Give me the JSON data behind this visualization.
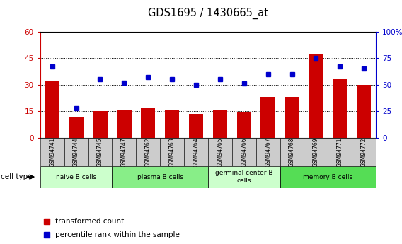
{
  "title": "GDS1695 / 1430665_at",
  "samples": [
    "GSM94741",
    "GSM94744",
    "GSM94745",
    "GSM94747",
    "GSM94762",
    "GSM94763",
    "GSM94764",
    "GSM94765",
    "GSM94766",
    "GSM94767",
    "GSM94768",
    "GSM94769",
    "GSM94771",
    "GSM94772"
  ],
  "bar_values": [
    32,
    12,
    15,
    16,
    17,
    15.5,
    13.5,
    15.5,
    14.5,
    23,
    23,
    47,
    33,
    30
  ],
  "dot_values": [
    67,
    28,
    55,
    52,
    57,
    55,
    50,
    55,
    51,
    60,
    60,
    75,
    67,
    65
  ],
  "ylim_left": [
    0,
    60
  ],
  "ylim_right": [
    0,
    100
  ],
  "yticks_left": [
    0,
    15,
    30,
    45,
    60
  ],
  "yticks_right": [
    0,
    25,
    50,
    75,
    100
  ],
  "ytick_labels_right": [
    "0",
    "25",
    "50",
    "75",
    "100%"
  ],
  "bar_color": "#cc0000",
  "dot_color": "#0000cc",
  "left_tick_color": "#cc0000",
  "right_tick_color": "#0000cc",
  "cell_groups": [
    {
      "label": "naive B cells",
      "start": 0,
      "end": 3,
      "color": "#ccffcc"
    },
    {
      "label": "plasma B cells",
      "start": 3,
      "end": 7,
      "color": "#88ee88"
    },
    {
      "label": "germinal center B\ncells",
      "start": 7,
      "end": 10,
      "color": "#ccffcc"
    },
    {
      "label": "memory B cells",
      "start": 10,
      "end": 14,
      "color": "#55dd55"
    }
  ],
  "legend_bar_label": "transformed count",
  "legend_dot_label": "percentile rank within the sample",
  "cell_type_label": "cell type"
}
